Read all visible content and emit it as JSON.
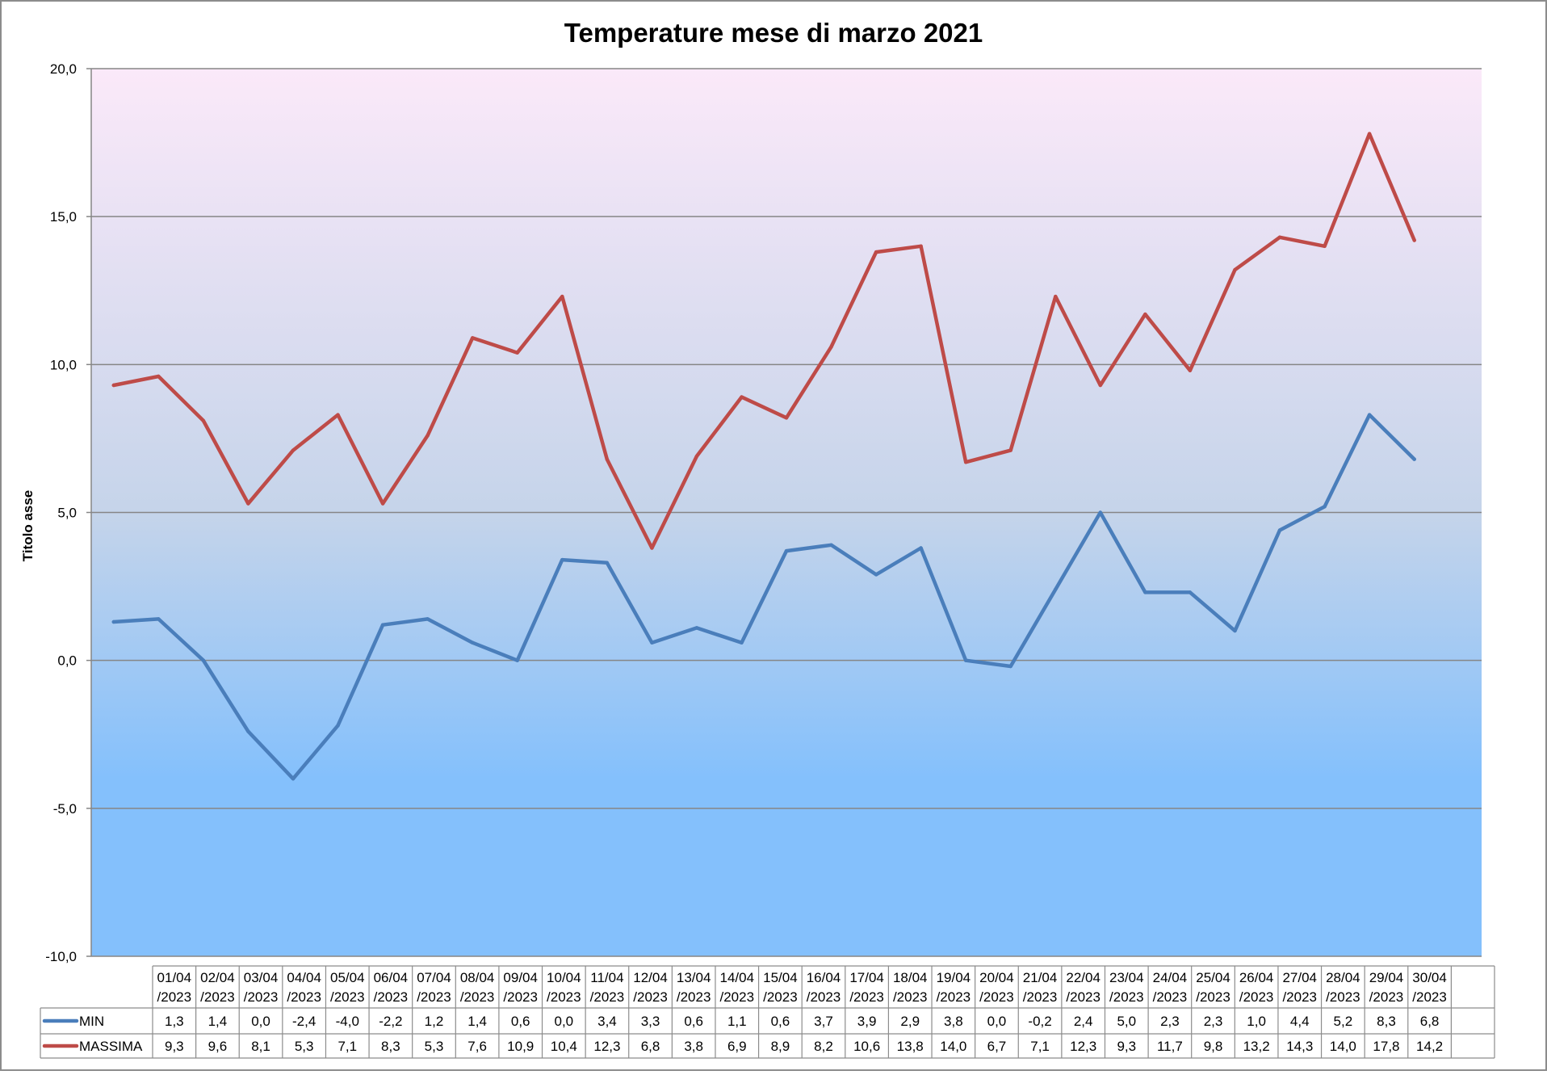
{
  "chart_data": {
    "type": "line",
    "title": "Temperature mese di marzo 2021",
    "ylabel": "Titolo asse",
    "xlabel": "",
    "ylim": [
      -10,
      20
    ],
    "ytick_step": 5,
    "ytick_labels": [
      "-10,0",
      "-5,0",
      "0,0",
      "5,0",
      "10,0",
      "15,0",
      "20,0"
    ],
    "grid": true,
    "legend_placement": "data-table",
    "background_gradient": {
      "top": "#fbe9f9",
      "mid": "#c5d4ea",
      "bottom": "#84c0fc"
    },
    "categories": [
      [
        "01/04",
        "/2023"
      ],
      [
        "02/04",
        "/2023"
      ],
      [
        "03/04",
        "/2023"
      ],
      [
        "04/04",
        "/2023"
      ],
      [
        "05/04",
        "/2023"
      ],
      [
        "06/04",
        "/2023"
      ],
      [
        "07/04",
        "/2023"
      ],
      [
        "08/04",
        "/2023"
      ],
      [
        "09/04",
        "/2023"
      ],
      [
        "10/04",
        "/2023"
      ],
      [
        "11/04",
        "/2023"
      ],
      [
        "12/04",
        "/2023"
      ],
      [
        "13/04",
        "/2023"
      ],
      [
        "14/04",
        "/2023"
      ],
      [
        "15/04",
        "/2023"
      ],
      [
        "16/04",
        "/2023"
      ],
      [
        "17/04",
        "/2023"
      ],
      [
        "18/04",
        "/2023"
      ],
      [
        "19/04",
        "/2023"
      ],
      [
        "20/04",
        "/2023"
      ],
      [
        "21/04",
        "/2023"
      ],
      [
        "22/04",
        "/2023"
      ],
      [
        "23/04",
        "/2023"
      ],
      [
        "24/04",
        "/2023"
      ],
      [
        "25/04",
        "/2023"
      ],
      [
        "26/04",
        "/2023"
      ],
      [
        "27/04",
        "/2023"
      ],
      [
        "28/04",
        "/2023"
      ],
      [
        "29/04",
        "/2023"
      ],
      [
        "30/04",
        "/2023"
      ],
      [
        "",
        ""
      ]
    ],
    "series": [
      {
        "name": "MIN",
        "color": "#4a7ebb",
        "values": [
          1.3,
          1.4,
          0.0,
          -2.4,
          -4.0,
          -2.2,
          1.2,
          1.4,
          0.6,
          0.0,
          3.4,
          3.3,
          0.6,
          1.1,
          0.6,
          3.7,
          3.9,
          2.9,
          3.8,
          0.0,
          -0.2,
          2.4,
          5.0,
          2.3,
          2.3,
          1.0,
          4.4,
          5.2,
          8.3,
          6.8,
          null
        ],
        "labels": [
          "1,3",
          "1,4",
          "0,0",
          "-2,4",
          "-4,0",
          "-2,2",
          "1,2",
          "1,4",
          "0,6",
          "0,0",
          "3,4",
          "3,3",
          "0,6",
          "1,1",
          "0,6",
          "3,7",
          "3,9",
          "2,9",
          "3,8",
          "0,0",
          "-0,2",
          "2,4",
          "5,0",
          "2,3",
          "2,3",
          "1,0",
          "4,4",
          "5,2",
          "8,3",
          "6,8",
          ""
        ]
      },
      {
        "name": "MASSIMA",
        "color": "#be4b48",
        "values": [
          9.3,
          9.6,
          8.1,
          5.3,
          7.1,
          8.3,
          5.3,
          7.6,
          10.9,
          10.4,
          12.3,
          6.8,
          3.8,
          6.9,
          8.9,
          8.2,
          10.6,
          13.8,
          14.0,
          6.7,
          7.1,
          12.3,
          9.3,
          11.7,
          9.8,
          13.2,
          14.3,
          14.0,
          17.8,
          14.2,
          null
        ],
        "labels": [
          "9,3",
          "9,6",
          "8,1",
          "5,3",
          "7,1",
          "8,3",
          "5,3",
          "7,6",
          "10,9",
          "10,4",
          "12,3",
          "6,8",
          "3,8",
          "6,9",
          "8,9",
          "8,2",
          "10,6",
          "13,8",
          "14,0",
          "6,7",
          "7,1",
          "12,3",
          "9,3",
          "11,7",
          "9,8",
          "13,2",
          "14,3",
          "14,0",
          "17,8",
          "14,2",
          ""
        ]
      }
    ]
  }
}
